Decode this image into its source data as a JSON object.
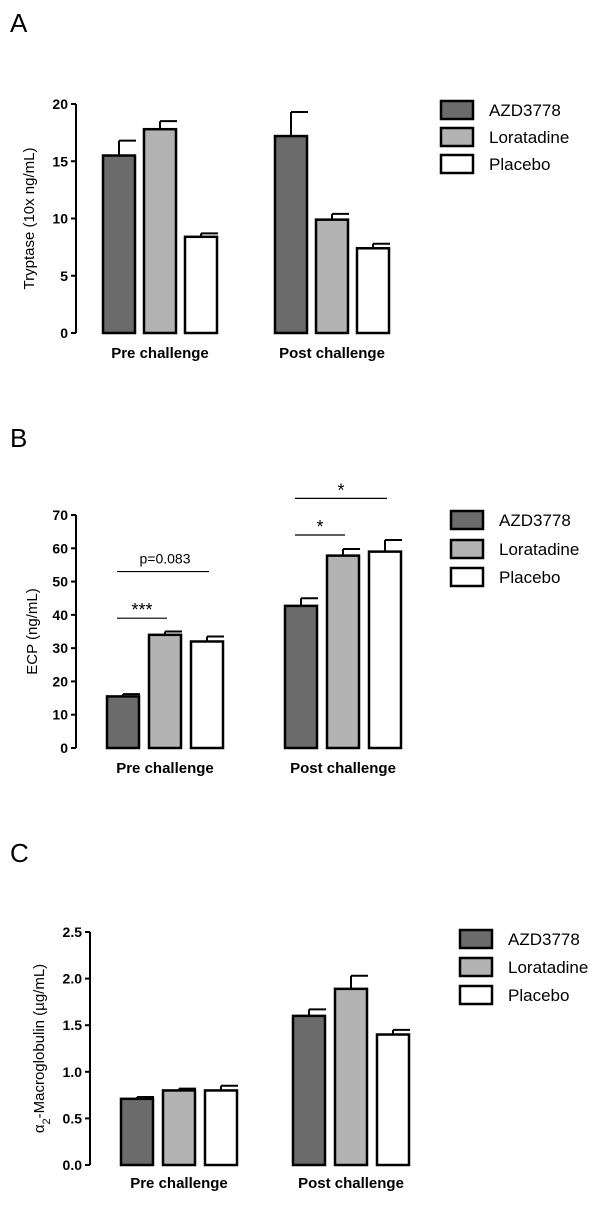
{
  "chart_data": [
    {
      "panel_label": "A",
      "type": "bar",
      "ylabel": "Tryptase (10x ng/mL)",
      "ylim": [
        0,
        20
      ],
      "yticks": [
        0,
        5,
        10,
        15,
        20
      ],
      "categories": [
        "Pre challenge",
        "Post challenge"
      ],
      "series": [
        {
          "name": "AZD3778",
          "color": "#6b6b6b",
          "values": [
            15.5,
            17.2
          ],
          "errors": [
            1.3,
            2.1
          ]
        },
        {
          "name": "Loratadine",
          "color": "#b3b3b3",
          "values": [
            17.8,
            9.9
          ],
          "errors": [
            0.7,
            0.5
          ]
        },
        {
          "name": "Placebo",
          "color": "#ffffff",
          "values": [
            8.4,
            7.4
          ],
          "errors": [
            0.3,
            0.4
          ]
        }
      ],
      "annotations": [],
      "legend": "right"
    },
    {
      "panel_label": "B",
      "type": "bar",
      "ylabel": "ECP (ng/mL)",
      "ylim": [
        0,
        70
      ],
      "yticks": [
        0,
        10,
        20,
        30,
        40,
        50,
        60,
        70
      ],
      "categories": [
        "Pre challenge",
        "Post challenge"
      ],
      "series": [
        {
          "name": "AZD3778",
          "color": "#6b6b6b",
          "values": [
            15.5,
            42.7
          ],
          "errors": [
            0.7,
            2.3
          ]
        },
        {
          "name": "Loratadine",
          "color": "#b3b3b3",
          "values": [
            34.0,
            57.8
          ],
          "errors": [
            1.0,
            2.0
          ]
        },
        {
          "name": "Placebo",
          "color": "#ffffff",
          "values": [
            32.0,
            59.0
          ],
          "errors": [
            1.5,
            3.5
          ]
        }
      ],
      "annotations": [
        {
          "text": "***",
          "group": 0,
          "from": 0,
          "to": 1,
          "y": 39
        },
        {
          "text": "p=0.083",
          "group": 0,
          "from": 0,
          "to": 2,
          "y": 53
        },
        {
          "text": "*",
          "group": 1,
          "from": 0,
          "to": 1,
          "y": 64
        },
        {
          "text": "*",
          "group": 1,
          "from": 0,
          "to": 2,
          "y": 75
        }
      ],
      "legend": "right"
    },
    {
      "panel_label": "C",
      "type": "bar",
      "ylabel": "α2-Macroglobulin (µg/mL)",
      "ylabel_parts": [
        "α",
        "2",
        "-Macroglobulin (µg/mL)"
      ],
      "ylim": [
        0,
        2.5
      ],
      "yticks": [
        0,
        0.5,
        1.0,
        1.5,
        2.0,
        2.5
      ],
      "ytick_labels": [
        "0.0",
        "0.5",
        "1.0",
        "1.5",
        "2.0",
        "2.5"
      ],
      "categories": [
        "Pre challenge",
        "Post challenge"
      ],
      "series": [
        {
          "name": "AZD3778",
          "color": "#6b6b6b",
          "values": [
            0.71,
            1.6
          ],
          "errors": [
            0.02,
            0.07
          ]
        },
        {
          "name": "Loratadine",
          "color": "#b3b3b3",
          "values": [
            0.8,
            1.89
          ],
          "errors": [
            0.02,
            0.14
          ]
        },
        {
          "name": "Placebo",
          "color": "#ffffff",
          "values": [
            0.8,
            1.4
          ],
          "errors": [
            0.05,
            0.05
          ]
        }
      ],
      "annotations": [],
      "legend": "right"
    }
  ]
}
